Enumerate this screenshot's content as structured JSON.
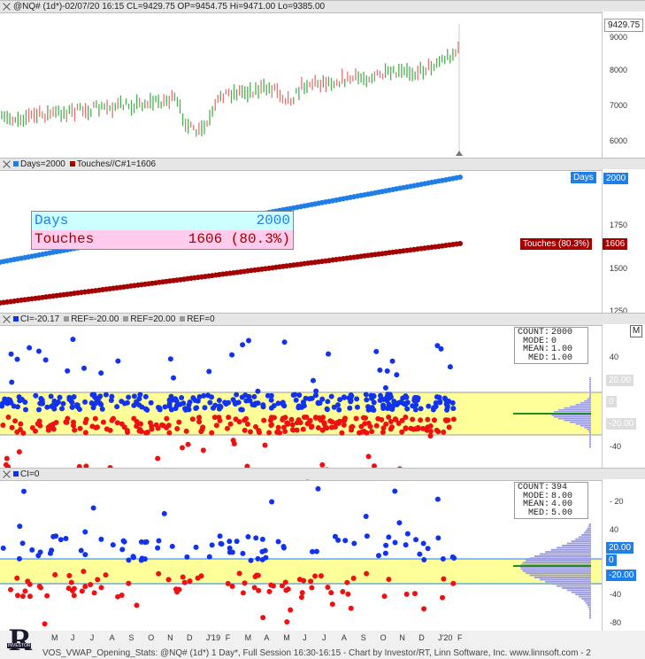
{
  "colors": {
    "blue": "#1f7fe6",
    "darkred": "#a40000",
    "dot_blue": "#1133ee",
    "dot_red": "#ee1111",
    "band": "#ffff99",
    "price_up": "#4caf50",
    "price_down": "#e57373"
  },
  "pane1": {
    "header": "@NQ# (1d*)-02/07/20 16:15 CL=9429.75 OP=9454.75 Hi=9471.00 Lo=9385.00",
    "last_price": "9429.75",
    "ticks": [
      "9000",
      "8000",
      "7000",
      "6000"
    ]
  },
  "pane2": {
    "legend_days": "Days=2000",
    "legend_touches": "Touches//C#1=1606",
    "ticks": [
      "1750",
      "1500",
      "1250"
    ],
    "days_tag": "Days",
    "days_value": "2000",
    "touches_tag": "Touches (80.3%)",
    "touches_value": "1606",
    "box": {
      "days_label": "Days",
      "days_value": "2000",
      "touches_label": "Touches",
      "touches_value": "1606 (80.3%)"
    }
  },
  "pane3": {
    "legend_ci": "CI=-20.17",
    "legend_ref1": "REF=-20.00",
    "legend_ref2": "REF=20.00",
    "legend_ref3": "REF=0",
    "ticks": [
      "40",
      "0",
      "-40"
    ],
    "ref_hi": "20.00",
    "ref_zero": "0",
    "ref_lo": "-20.00",
    "m_button": "M",
    "stats": {
      "count_label": "COUNT:",
      "count": "2000",
      "mode_label": "MODE:",
      "mode": "0",
      "mean_label": "MEAN:",
      "mean": "1.00",
      "med_label": "MED:",
      "med": "1.00"
    }
  },
  "pane4": {
    "legend_ci": "CI=0",
    "ticks": [
      "40",
      "0",
      "-40",
      "-80"
    ],
    "tick_top": "- 20",
    "ref_hi": "20.00",
    "ref_zero": "0",
    "ref_lo": "-20.00",
    "stats": {
      "count_label": "COUNT:",
      "count": "394",
      "mode_label": "MODE:",
      "mode": "8.00",
      "mean_label": "MEAN:",
      "mean": "4.00",
      "med_label": "MED:",
      "med": "5.00"
    }
  },
  "time_axis": {
    "months": [
      "M",
      "J",
      "J",
      "A",
      "S",
      "O",
      "N",
      "D",
      "J'19",
      "F",
      "M",
      "A",
      "M",
      "J",
      "J",
      "A",
      "S",
      "O",
      "N",
      "D",
      "J'20",
      "F"
    ]
  },
  "footer": {
    "text": "VOS_VWAP_Opening_Stats: @NQ# (1d*) 1 Day*, Full Session 16:30-16:15 - Chart by Investor/RT, Linn Software, Inc. www.linnsoft.com - 2",
    "logo_letter": "R",
    "logo_sub": "INVESTOR"
  }
}
